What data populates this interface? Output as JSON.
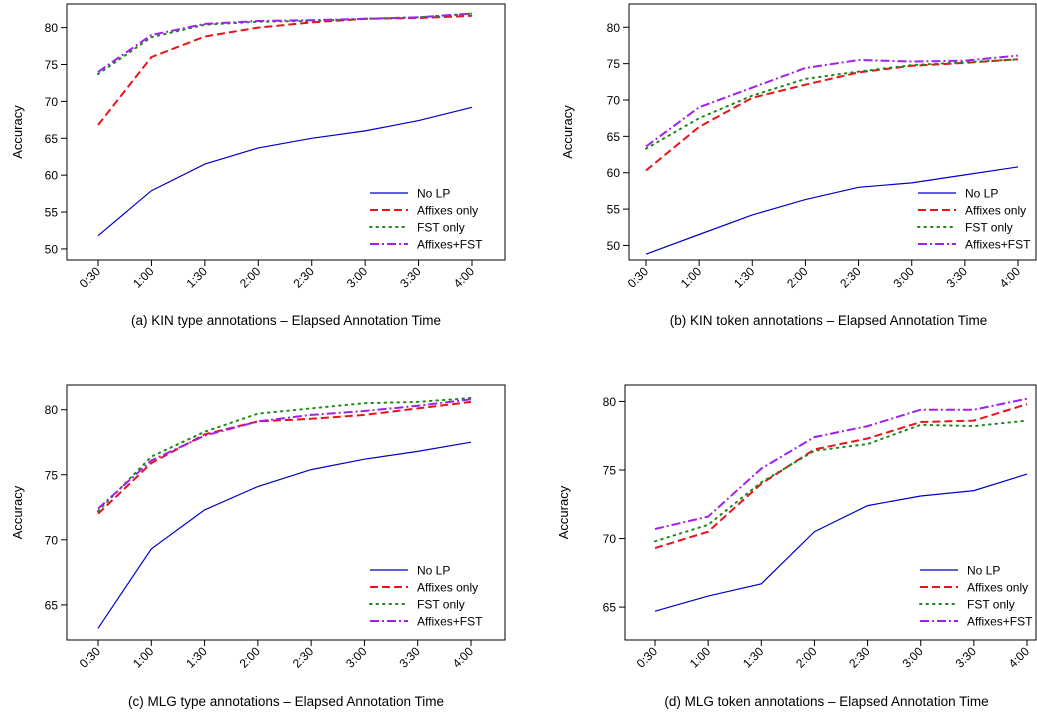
{
  "chart_data": [
    {
      "type": "line",
      "caption": "(a) KIN type annotations – Elapsed Annotation Time",
      "ylabel": "Accuracy",
      "x": [
        "0:30",
        "1:00",
        "1:30",
        "2:00",
        "2:30",
        "3:00",
        "3:30",
        "4:00"
      ],
      "yticks": [
        50,
        55,
        60,
        65,
        70,
        75,
        80
      ],
      "ylim": [
        48.5,
        83.2
      ],
      "legend_position": "bottom-right",
      "series": [
        {
          "name": "No LP",
          "color": "#0000cc",
          "style": "solid",
          "values": [
            51.8,
            57.9,
            61.5,
            63.7,
            65.0,
            66.0,
            67.4,
            69.2
          ]
        },
        {
          "name": "Affixes only",
          "color": "#e8141a",
          "style": "dashed",
          "values": [
            66.8,
            76.0,
            78.8,
            80.0,
            80.7,
            81.2,
            81.3,
            81.6
          ]
        },
        {
          "name": "FST only",
          "color": "#1a8a1a",
          "style": "dotted",
          "values": [
            73.7,
            78.7,
            80.4,
            80.8,
            80.9,
            81.2,
            81.4,
            81.9
          ]
        },
        {
          "name": "Affixes+FST",
          "color": "#a020f0",
          "style": "dashdot",
          "values": [
            74.0,
            79.0,
            80.5,
            80.9,
            81.0,
            81.2,
            81.4,
            81.9
          ]
        }
      ]
    },
    {
      "type": "line",
      "caption": "(b) KIN token annotations – Elapsed Annotation Time",
      "ylabel": "Accuracy",
      "x": [
        "0:30",
        "1:00",
        "1:30",
        "2:00",
        "2:30",
        "3:00",
        "3:30",
        "4:00"
      ],
      "yticks": [
        50,
        55,
        60,
        65,
        70,
        75,
        80
      ],
      "ylim": [
        48.0,
        83.2
      ],
      "legend_position": "bottom-right",
      "series": [
        {
          "name": "No LP",
          "color": "#0000cc",
          "style": "solid",
          "values": [
            48.8,
            51.5,
            54.2,
            56.3,
            58.0,
            58.6,
            59.7,
            60.8
          ]
        },
        {
          "name": "Affixes only",
          "color": "#e8141a",
          "style": "dashed",
          "values": [
            60.3,
            66.3,
            70.3,
            72.1,
            73.8,
            74.7,
            75.1,
            75.6
          ]
        },
        {
          "name": "FST only",
          "color": "#1a8a1a",
          "style": "dotted",
          "values": [
            63.3,
            67.5,
            70.6,
            72.9,
            73.9,
            74.8,
            75.2,
            75.6
          ]
        },
        {
          "name": "Affixes+FST",
          "color": "#a020f0",
          "style": "dashdot",
          "values": [
            63.6,
            69.0,
            71.7,
            74.4,
            75.5,
            75.3,
            75.4,
            76.1
          ]
        }
      ]
    },
    {
      "type": "line",
      "caption": "(c) MLG type annotations – Elapsed Annotation Time",
      "ylabel": "Accuracy",
      "x": [
        "0:30",
        "1:00",
        "1:30",
        "2:00",
        "2:30",
        "3:00",
        "3:30",
        "4:00"
      ],
      "yticks": [
        65,
        70,
        75,
        80
      ],
      "ylim": [
        62.3,
        81.9
      ],
      "legend_position": "bottom-right",
      "series": [
        {
          "name": "No LP",
          "color": "#0000cc",
          "style": "solid",
          "values": [
            63.2,
            69.3,
            72.3,
            74.1,
            75.4,
            76.2,
            76.8,
            77.5
          ]
        },
        {
          "name": "Affixes only",
          "color": "#e8141a",
          "style": "dashed",
          "values": [
            72.0,
            75.9,
            78.1,
            79.1,
            79.3,
            79.6,
            80.1,
            80.6
          ]
        },
        {
          "name": "FST only",
          "color": "#1a8a1a",
          "style": "dotted",
          "values": [
            72.2,
            76.4,
            78.3,
            79.7,
            80.1,
            80.5,
            80.6,
            80.9
          ]
        },
        {
          "name": "Affixes+FST",
          "color": "#a020f0",
          "style": "dashdot",
          "values": [
            72.4,
            76.1,
            78.0,
            79.1,
            79.6,
            79.9,
            80.3,
            80.8
          ]
        }
      ]
    },
    {
      "type": "line",
      "caption": "(d) MLG token annotations – Elapsed Annotation Time",
      "ylabel": "Accuracy",
      "x": [
        "0:30",
        "1:00",
        "1:30",
        "2:00",
        "2:30",
        "3:00",
        "3:30",
        "4:00"
      ],
      "yticks": [
        65,
        70,
        75,
        80
      ],
      "ylim": [
        62.6,
        81.2
      ],
      "legend_position": "bottom-right",
      "series": [
        {
          "name": "No LP",
          "color": "#0000cc",
          "style": "solid",
          "values": [
            64.7,
            65.8,
            66.7,
            70.5,
            72.4,
            73.1,
            73.5,
            74.7
          ]
        },
        {
          "name": "Affixes only",
          "color": "#e8141a",
          "style": "dashed",
          "values": [
            69.3,
            70.5,
            74.0,
            76.5,
            77.3,
            78.5,
            78.6,
            79.8
          ]
        },
        {
          "name": "FST only",
          "color": "#1a8a1a",
          "style": "dotted",
          "values": [
            69.8,
            71.0,
            74.1,
            76.4,
            76.9,
            78.3,
            78.2,
            78.6
          ]
        },
        {
          "name": "Affixes+FST",
          "color": "#a020f0",
          "style": "dashdot",
          "values": [
            70.7,
            71.6,
            75.1,
            77.4,
            78.2,
            79.4,
            79.4,
            80.2
          ]
        }
      ]
    }
  ]
}
